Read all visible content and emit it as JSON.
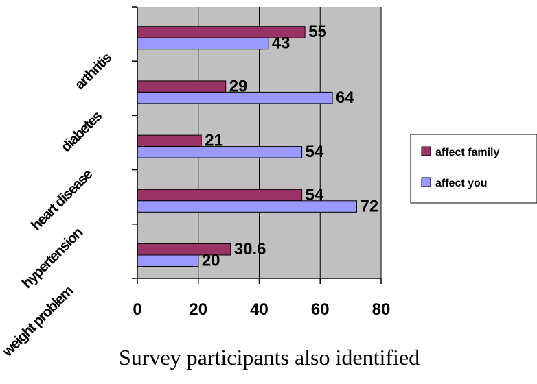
{
  "chart_data": {
    "type": "bar",
    "orientation": "horizontal",
    "categories": [
      "arthritis",
      "diabetes",
      "heart disease",
      "hypertension",
      "weight problem"
    ],
    "series": [
      {
        "name": "affect family",
        "values": [
          55,
          29,
          21,
          54,
          30.6
        ],
        "labels": [
          "55",
          "29",
          "21",
          "54",
          "30.6"
        ],
        "color": "#993366"
      },
      {
        "name": "affect you",
        "values": [
          43,
          64,
          54,
          72,
          20
        ],
        "labels": [
          "43",
          "64",
          "54",
          "72",
          "20"
        ],
        "color": "#9999ff"
      }
    ],
    "xlim": [
      0,
      80
    ],
    "xticks": [
      "0",
      "20",
      "40",
      "60",
      "80"
    ],
    "xtick_values": [
      0,
      20,
      40,
      60,
      80
    ],
    "grid": true,
    "plot_background": "#c0c0c0",
    "legend_position": "right"
  },
  "caption": "Survey participants also identified"
}
